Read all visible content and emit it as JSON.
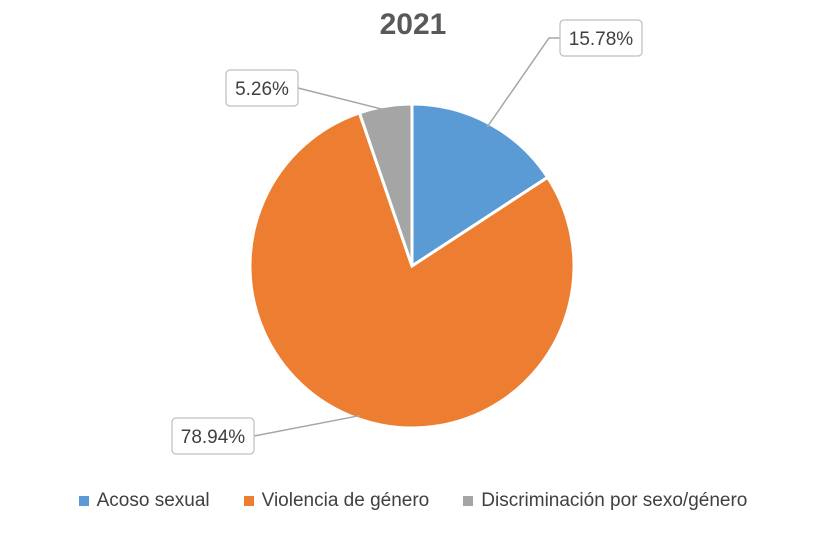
{
  "chart_data": {
    "type": "pie",
    "title": "2021",
    "categories": [
      "Acoso sexual",
      "Violencia de género",
      "Discriminación por sexo/género"
    ],
    "values": [
      15.78,
      78.94,
      5.26
    ],
    "data_labels": [
      "15.78%",
      "78.94%",
      "5.26%"
    ],
    "colors": [
      "#5b9bd5",
      "#ed7d31",
      "#a5a5a5"
    ],
    "legend_position": "bottom"
  }
}
